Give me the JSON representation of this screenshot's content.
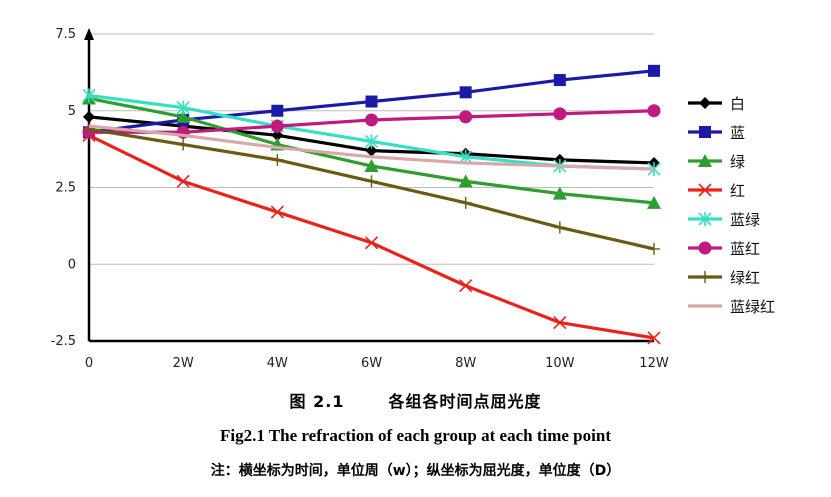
{
  "chart_data": {
    "type": "line",
    "categories": [
      "0",
      "2W",
      "4W",
      "6W",
      "8W",
      "10W",
      "12W"
    ],
    "y_ticks": [
      "-2.5",
      "0",
      "2.5",
      "5",
      "7.5"
    ],
    "ylim": [
      -2.5,
      7.5
    ],
    "grid": true,
    "legend_position": "right",
    "series": [
      {
        "name": "白",
        "color": "#000000",
        "marker": "diamond",
        "values": [
          4.8,
          4.5,
          4.2,
          3.7,
          3.6,
          3.4,
          3.3
        ]
      },
      {
        "name": "蓝",
        "color": "#1a1aa6",
        "marker": "square",
        "values": [
          4.3,
          4.7,
          5.0,
          5.3,
          5.6,
          6.0,
          6.3
        ]
      },
      {
        "name": "绿",
        "color": "#2e9e2e",
        "marker": "triangle",
        "values": [
          5.4,
          4.8,
          3.9,
          3.2,
          2.7,
          2.3,
          2.0
        ]
      },
      {
        "name": "红",
        "color": "#e8231a",
        "marker": "x",
        "values": [
          4.2,
          2.7,
          1.7,
          0.7,
          -0.7,
          -1.9,
          -2.4
        ]
      },
      {
        "name": "蓝绿",
        "color": "#33e0c4",
        "marker": "asterisk",
        "values": [
          5.5,
          5.1,
          4.5,
          4.0,
          3.5,
          3.2,
          3.1
        ]
      },
      {
        "name": "蓝红",
        "color": "#c2197f",
        "marker": "circle",
        "values": [
          4.3,
          4.3,
          4.5,
          4.7,
          4.8,
          4.9,
          5.0
        ]
      },
      {
        "name": "绿红",
        "color": "#6b5a10",
        "marker": "plus",
        "values": [
          4.4,
          3.9,
          3.4,
          2.7,
          2.0,
          1.2,
          0.5
        ]
      },
      {
        "name": "蓝绿红",
        "color": "#d8a7a7",
        "marker": "none",
        "values": [
          4.5,
          4.2,
          3.8,
          3.5,
          3.3,
          3.2,
          3.1
        ]
      }
    ]
  },
  "caption": {
    "cn_number": "图 2.1",
    "cn_title": "各组各时间点屈光度",
    "en": "Fig2.1 The refraction of each group at each time point",
    "note": "注：横坐标为时间，单位周（w）；纵坐标为屈光度，单位度（D）"
  }
}
